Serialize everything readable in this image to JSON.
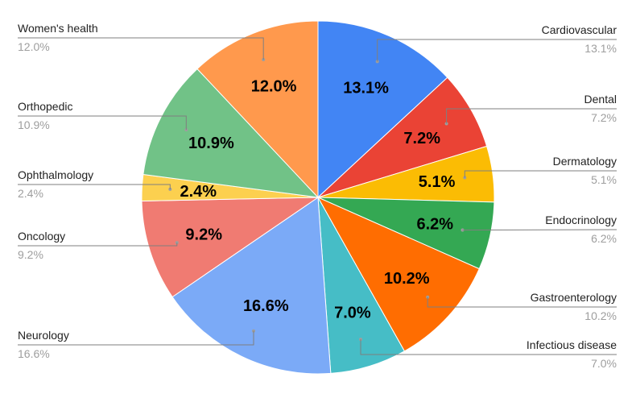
{
  "chart_data": {
    "type": "pie",
    "title": "",
    "start_angle_deg": 0,
    "direction": "clockwise",
    "series": [
      {
        "slices": [
          {
            "label": "Cardiovascular",
            "value": 13.1,
            "display": "13.1%",
            "color": "#4285f4",
            "side": "right"
          },
          {
            "label": "Dental",
            "value": 7.2,
            "display": "7.2%",
            "color": "#ea4335",
            "side": "right"
          },
          {
            "label": "Dermatology",
            "value": 5.1,
            "display": "5.1%",
            "color": "#fbbc04",
            "side": "right"
          },
          {
            "label": "Endocrinology",
            "value": 6.2,
            "display": "6.2%",
            "color": "#34a853",
            "side": "right"
          },
          {
            "label": "Gastroenterology",
            "value": 10.2,
            "display": "10.2%",
            "color": "#ff6d01",
            "side": "right"
          },
          {
            "label": "Infectious disease",
            "value": 7.0,
            "display": "7.0%",
            "color": "#46bdc6",
            "side": "right"
          },
          {
            "label": "Neurology",
            "value": 16.6,
            "display": "16.6%",
            "color": "#7baaf7",
            "side": "left"
          },
          {
            "label": "Oncology",
            "value": 9.2,
            "display": "9.2%",
            "color": "#f07b72",
            "side": "left"
          },
          {
            "label": "Ophthalmology",
            "value": 2.4,
            "display": "2.4%",
            "color": "#fcd04f",
            "side": "left"
          },
          {
            "label": "Orthopedic",
            "value": 10.9,
            "display": "10.9%",
            "color": "#71c287",
            "side": "left"
          },
          {
            "label": "Women's health",
            "value": 12.0,
            "display": "12.0%",
            "color": "#ff994d",
            "side": "left"
          }
        ]
      }
    ],
    "legend": "leader-labels-outside",
    "slice_labels": "percent-inside"
  }
}
